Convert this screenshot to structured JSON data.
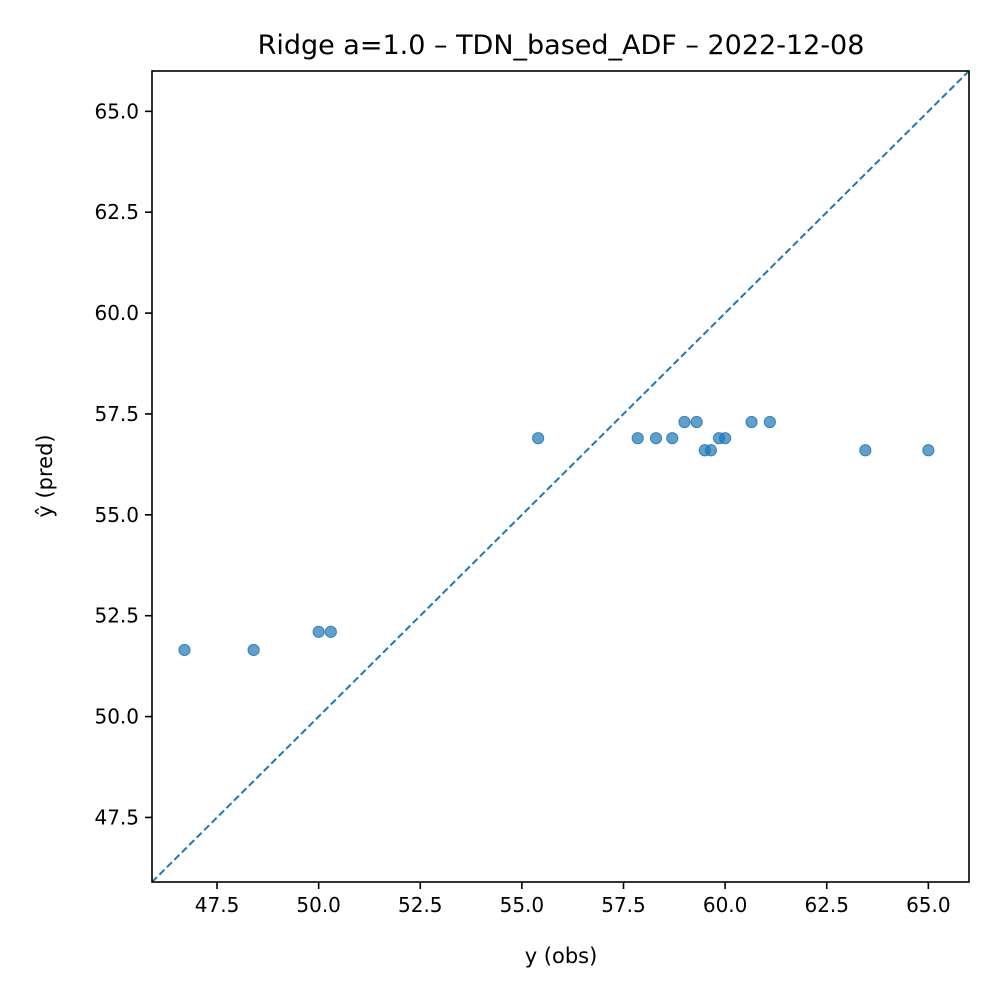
{
  "chart_data": {
    "type": "scatter",
    "title": "Ridge a=1.0 – TDN_based_ADF – 2022-12-08",
    "xlabel": "y (obs)",
    "ylabel": "ŷ (pred)",
    "xlim": [
      45.9,
      66.0
    ],
    "ylim": [
      45.9,
      66.0
    ],
    "xticks": [
      47.5,
      50.0,
      52.5,
      55.0,
      57.5,
      60.0,
      62.5,
      65.0
    ],
    "yticks": [
      47.5,
      50.0,
      52.5,
      55.0,
      57.5,
      60.0,
      62.5,
      65.0
    ],
    "tick_labels": [
      "47.5",
      "50.0",
      "52.5",
      "55.0",
      "57.5",
      "60.0",
      "62.5",
      "65.0"
    ],
    "grid": false,
    "reference_line": "y = x (dashed)",
    "point_color": "#1f77b4",
    "point_opacity": 0.7,
    "line_color": "#1f77b4",
    "points": [
      {
        "x": 46.7,
        "y": 51.65
      },
      {
        "x": 48.4,
        "y": 51.65
      },
      {
        "x": 50.0,
        "y": 52.1
      },
      {
        "x": 50.3,
        "y": 52.1
      },
      {
        "x": 55.4,
        "y": 56.9
      },
      {
        "x": 57.85,
        "y": 56.9
      },
      {
        "x": 58.3,
        "y": 56.9
      },
      {
        "x": 58.7,
        "y": 56.9
      },
      {
        "x": 59.0,
        "y": 57.3
      },
      {
        "x": 59.3,
        "y": 57.3
      },
      {
        "x": 59.5,
        "y": 56.6
      },
      {
        "x": 59.65,
        "y": 56.6
      },
      {
        "x": 59.85,
        "y": 56.9
      },
      {
        "x": 60.0,
        "y": 56.9
      },
      {
        "x": 60.65,
        "y": 57.3
      },
      {
        "x": 61.1,
        "y": 57.3
      },
      {
        "x": 63.45,
        "y": 56.6
      },
      {
        "x": 65.0,
        "y": 56.6
      }
    ]
  }
}
